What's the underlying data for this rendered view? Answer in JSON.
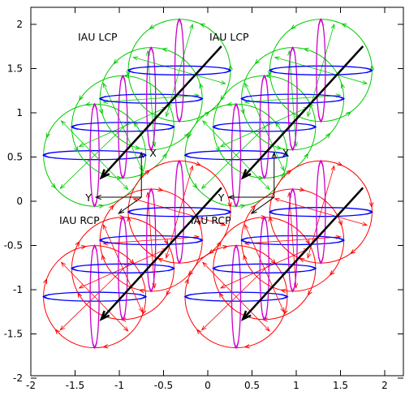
{
  "chart_data": {
    "type": "scatter",
    "title": "",
    "xlabel": "",
    "ylabel": "",
    "xlim": [
      -2,
      2.2
    ],
    "ylim": [
      -2,
      2.2
    ],
    "x_ticks": [
      "-2",
      "-1.5",
      "-1",
      "-0.5",
      "0",
      "0.5",
      "1",
      "1.5",
      "2"
    ],
    "y_ticks": [
      "2",
      "1.5",
      "1",
      "0.5",
      "0",
      "-0.5",
      "-1",
      "-1.5",
      "-2"
    ],
    "grid": false,
    "groups": [
      {
        "label": "IAU LCP",
        "handedness": "left",
        "center": [
          -0.8,
          1.0
        ],
        "color": "#00cc00"
      },
      {
        "label": "IAU LCP",
        "handedness": "left",
        "center": [
          0.8,
          1.0
        ],
        "color": "#00cc00"
      },
      {
        "label": "IAU RCP",
        "handedness": "right",
        "center": [
          -0.8,
          -0.6
        ],
        "color": "#ff0000"
      },
      {
        "label": "IAU RCP",
        "handedness": "right",
        "center": [
          0.8,
          -0.6
        ],
        "color": "#ff0000"
      }
    ],
    "axes_triads": [
      {
        "origin": [
          -0.75,
          0.55
        ],
        "x_label": "X",
        "y_label": "Y"
      },
      {
        "origin": [
          0.75,
          0.55
        ],
        "x_label": "X",
        "y_label": "Y"
      }
    ],
    "colors": {
      "propagation": "#000000",
      "horizontal_field": "#0000ff",
      "vertical_field": "#cc00cc"
    }
  }
}
